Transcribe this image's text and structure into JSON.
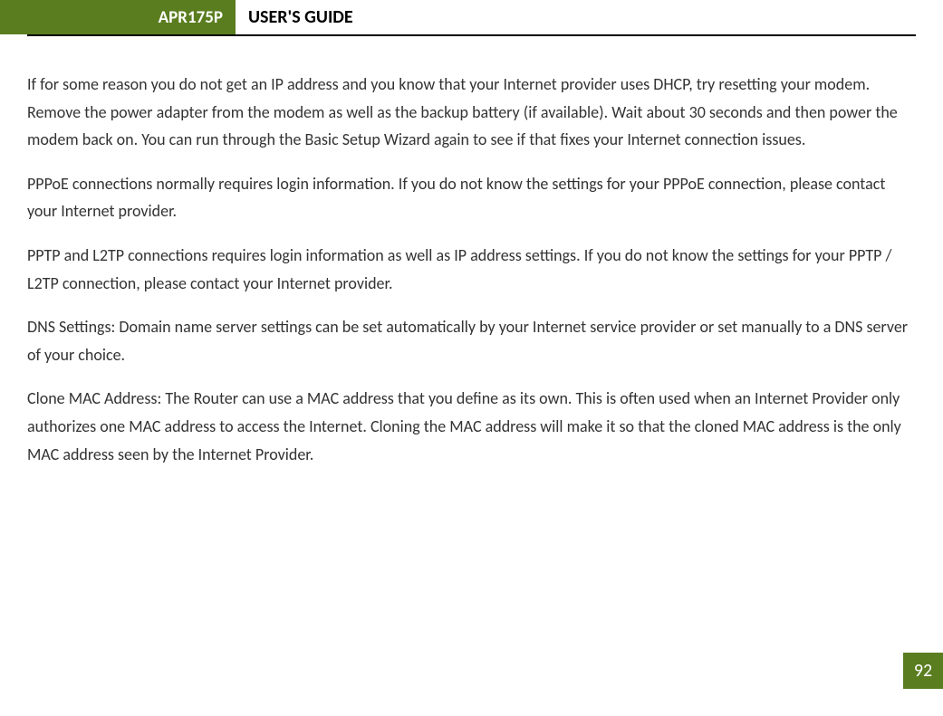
{
  "header": {
    "model": "APR175P",
    "title": "USER'S GUIDE"
  },
  "content": {
    "para1": "If for some reason you do not get an IP address and you know that your Internet provider uses DHCP, try resetting your modem. Remove the power adapter from the modem as well as the backup battery (if available). Wait about 30 seconds and then power the modem back on. You can run through the Basic Setup Wizard again to see if that fixes your Internet connection issues.",
    "para2": "PPPoE connections normally requires login information.  If you do not know the settings for your PPPoE connection, please contact your Internet provider.",
    "para3": "PPTP and L2TP connections requires login information as well as IP address settings.  If you do not know the settings for your PPTP / L2TP connection, please contact your Internet provider.",
    "para4": "DNS Settings: Domain name server settings can be set automatically by your Internet service provider or set manually to a DNS server of your choice.",
    "para5": "Clone MAC Address: The Router can use a MAC address that you define as its own. This is often used when an Internet Provider only authorizes one MAC address to access the Internet. Cloning the MAC address will make it so that the cloned MAC address is the only MAC address seen by the Internet Provider."
  },
  "page_number": "92",
  "colors": {
    "brand_green": "#5a7d1f",
    "text": "#333333",
    "white": "#ffffff",
    "black": "#000000"
  }
}
